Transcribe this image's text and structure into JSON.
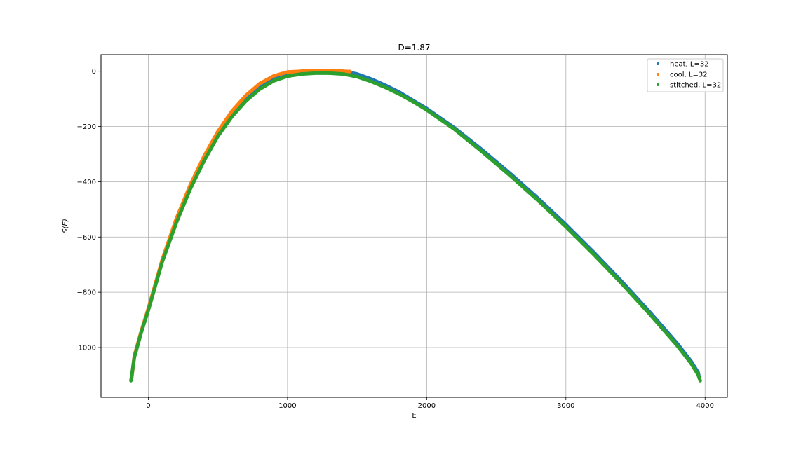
{
  "chart_data": {
    "type": "scatter",
    "title": "D=1.87",
    "xlabel": "E",
    "ylabel": "S(E)",
    "xlim": [
      -340,
      4160
    ],
    "ylim": [
      -1180,
      60
    ],
    "xticks": [
      0,
      1000,
      2000,
      3000,
      4000
    ],
    "xtick_labels": [
      "0",
      "1000",
      "2000",
      "3000",
      "4000"
    ],
    "yticks": [
      0,
      -200,
      -400,
      -600,
      -800,
      -1000
    ],
    "ytick_labels": [
      "0",
      "−200",
      "−400",
      "−600",
      "−800",
      "−1000"
    ],
    "grid": true,
    "legend_position": "top-right",
    "series": [
      {
        "name": "heat, L=32",
        "color": "#1f77b4",
        "x": [
          -120,
          -100,
          -50,
          0,
          100,
          200,
          300,
          400,
          500,
          600,
          700,
          800,
          900,
          1000,
          1100,
          1200,
          1300,
          1400,
          1500,
          1600,
          1700,
          1800,
          1900,
          2000,
          2200,
          2400,
          2600,
          2800,
          3000,
          3200,
          3400,
          3600,
          3800,
          3900,
          3950,
          3960
        ],
        "y": [
          -1110,
          -1030,
          -940,
          -860,
          -685,
          -540,
          -420,
          -315,
          -225,
          -152,
          -95,
          -52,
          -22,
          -6,
          0,
          2,
          2,
          0,
          -10,
          -28,
          -50,
          -75,
          -105,
          -135,
          -205,
          -285,
          -370,
          -460,
          -555,
          -655,
          -760,
          -870,
          -985,
          -1050,
          -1090,
          -1112
        ]
      },
      {
        "name": "cool, L=32",
        "color": "#ff7f0e",
        "x": [
          -120,
          -100,
          -50,
          0,
          100,
          200,
          300,
          400,
          500,
          600,
          700,
          800,
          900,
          1000,
          1100,
          1200,
          1300,
          1400,
          1450
        ],
        "y": [
          -1110,
          -1030,
          -940,
          -858,
          -682,
          -535,
          -413,
          -308,
          -218,
          -145,
          -88,
          -45,
          -17,
          -3,
          0,
          2,
          2,
          0,
          -1
        ]
      },
      {
        "name": "stitched, L=32",
        "color": "#2ca02c",
        "x": [
          -125,
          -100,
          -50,
          0,
          100,
          200,
          300,
          400,
          500,
          600,
          700,
          800,
          900,
          1000,
          1100,
          1200,
          1300,
          1400,
          1500,
          1600,
          1700,
          1800,
          1900,
          2000,
          2200,
          2400,
          2600,
          2800,
          3000,
          3200,
          3400,
          3600,
          3800,
          3900,
          3950,
          3965
        ],
        "y": [
          -1120,
          -1035,
          -945,
          -865,
          -690,
          -550,
          -428,
          -325,
          -235,
          -165,
          -108,
          -65,
          -35,
          -18,
          -10,
          -7,
          -7,
          -10,
          -20,
          -37,
          -58,
          -82,
          -110,
          -140,
          -210,
          -292,
          -378,
          -468,
          -563,
          -663,
          -768,
          -878,
          -993,
          -1058,
          -1098,
          -1120
        ]
      }
    ]
  }
}
